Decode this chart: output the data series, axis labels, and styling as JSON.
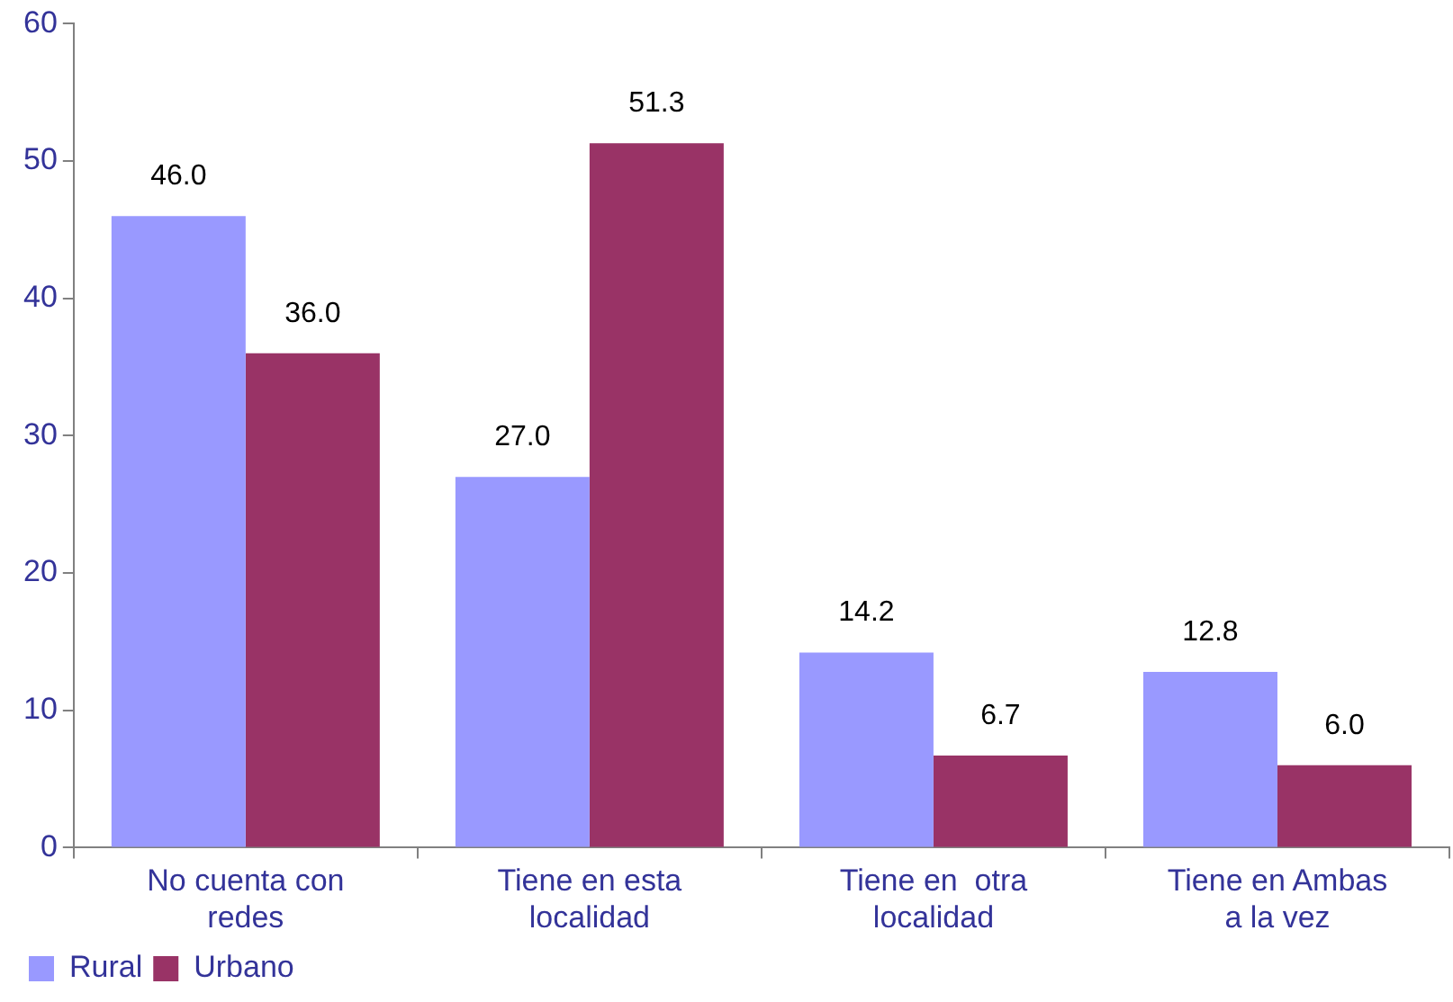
{
  "chart_data": {
    "type": "bar",
    "categories": [
      "No cuenta con redes",
      "Tiene en esta localidad",
      "Tiene en  otra localidad",
      "Tiene en Ambas a la vez"
    ],
    "series": [
      {
        "name": "Rural",
        "color": "#9999ff",
        "values": [
          46.0,
          27.0,
          14.2,
          12.8
        ],
        "value_labels": [
          "46.0",
          "27.0",
          "14.2",
          "12.8"
        ]
      },
      {
        "name": "Urbano",
        "color": "#993366",
        "values": [
          36.0,
          51.3,
          6.7,
          6.0
        ],
        "value_labels": [
          "36.0",
          "51.3",
          "6.7",
          "6.0"
        ]
      }
    ],
    "ylim": [
      0,
      60
    ],
    "yticks": [
      0,
      10,
      20,
      30,
      40,
      50,
      60
    ],
    "grid": false,
    "legend": "bottom left"
  }
}
